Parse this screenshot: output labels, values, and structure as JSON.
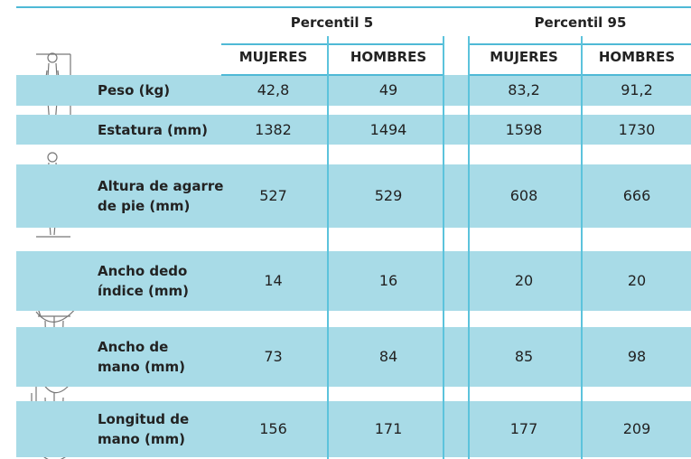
{
  "header": {
    "groups": [
      "Percentil 5",
      "Percentil 95"
    ],
    "columns": [
      "MUJERES",
      "HOMBRES",
      "MUJERES",
      "HOMBRES"
    ]
  },
  "rows": [
    {
      "label": [
        "Peso (kg)"
      ],
      "values": [
        "42,8",
        "49",
        "83,2",
        "91,2"
      ]
    },
    {
      "label": [
        "Estatura (mm)"
      ],
      "values": [
        "1382",
        "1494",
        "1598",
        "1730"
      ]
    },
    {
      "label": [
        "Altura de agarre",
        "de pie (mm)"
      ],
      "values": [
        "527",
        "529",
        "608",
        "666"
      ]
    },
    {
      "label": [
        "Ancho dedo",
        "índice (mm)"
      ],
      "values": [
        "14",
        "16",
        "20",
        "20"
      ]
    },
    {
      "label": [
        "Ancho de",
        "mano (mm)"
      ],
      "values": [
        "73",
        "84",
        "85",
        "98"
      ]
    },
    {
      "label": [
        "Longitud de",
        "mano (mm)"
      ],
      "values": [
        "156",
        "171",
        "177",
        "209"
      ]
    }
  ]
}
